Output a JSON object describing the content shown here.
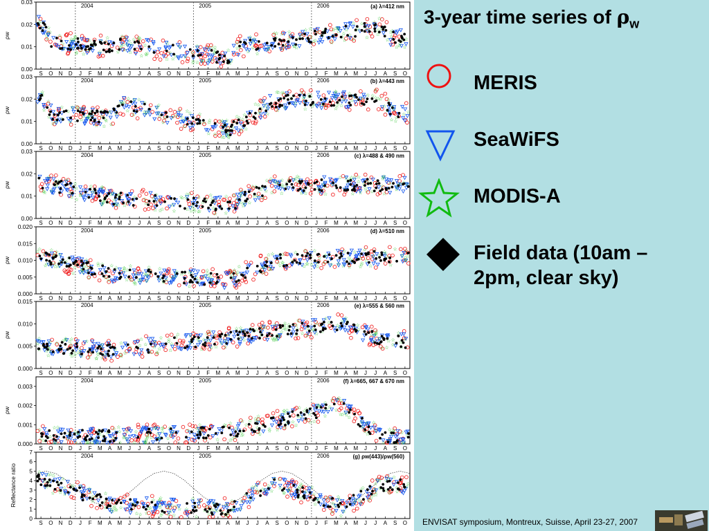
{
  "slide": {
    "title_main": "3-year time series of ",
    "title_rho": "ρ",
    "title_sub": "w",
    "footer": "ENVISAT symposium, Montreux, Suisse, April 23-27, 2007",
    "legend": [
      {
        "label": "MERIS",
        "symbol": "circle-icon",
        "color": "#ee1111"
      },
      {
        "label": "SeaWiFS",
        "symbol": "triangle-down-icon",
        "color": "#1155ee"
      },
      {
        "label": "MODIS-A",
        "symbol": "star-icon",
        "color": "#11bb11"
      },
      {
        "label": "Field data (10am –",
        "label2": "2pm, clear sky)",
        "symbol": "diamond-icon",
        "color": "#000000"
      }
    ]
  },
  "chart_data": [
    {
      "type": "scatter",
      "panel": "(a) λ=412 nm",
      "ylabel": "ρw",
      "yticks": [
        "0.00",
        "0.01",
        "0.02",
        "0.03"
      ],
      "ylim": [
        0,
        0.03
      ],
      "years": [
        "2004",
        "2005",
        "2006"
      ],
      "months": [
        "S",
        "O",
        "N",
        "D",
        "J",
        "F",
        "M",
        "A",
        "M",
        "J",
        "J",
        "A",
        "S",
        "O",
        "N",
        "D",
        "J",
        "F",
        "M",
        "A",
        "M",
        "J",
        "J",
        "A",
        "S",
        "O",
        "N",
        "D",
        "J",
        "F",
        "M",
        "A",
        "M",
        "J",
        "J",
        "A",
        "S",
        "O"
      ],
      "series": [
        {
          "name": "MERIS",
          "x": [
            1,
            5,
            8,
            12,
            16,
            21,
            25,
            30,
            34,
            38
          ],
          "values": [
            0.021,
            0.013,
            0.017,
            0.02,
            0.022,
            0.014,
            0.016,
            0.018,
            0.012,
            0.019
          ]
        },
        {
          "name": "Field data",
          "x": [
            0.5,
            1.5,
            7.5,
            8.5,
            19.5,
            20.5,
            35,
            36
          ],
          "values": [
            0.02,
            0.012,
            0.01,
            0.011,
            0.005,
            0.01,
            0.019,
            0.014
          ]
        }
      ]
    },
    {
      "type": "scatter",
      "panel": "(b) λ=443 nm",
      "ylabel": "ρw",
      "yticks": [
        "0.00",
        "0.01",
        "0.02",
        "0.03"
      ],
      "ylim": [
        0,
        0.03
      ],
      "years": [
        "2004",
        "2005",
        "2006"
      ],
      "months": [
        "S",
        "O",
        "N",
        "D",
        "J",
        "F",
        "M",
        "A",
        "M",
        "J",
        "J",
        "A",
        "S",
        "O",
        "N",
        "D",
        "J",
        "F",
        "M",
        "A",
        "M",
        "J",
        "J",
        "A",
        "S",
        "O",
        "N",
        "D",
        "J",
        "F",
        "M",
        "A",
        "M",
        "J",
        "J",
        "A",
        "S",
        "O"
      ],
      "series": [
        {
          "name": "Field data",
          "x": [
            0.5,
            1.5,
            7.5,
            8.5,
            19.5,
            24,
            35,
            36
          ],
          "values": [
            0.02,
            0.013,
            0.012,
            0.018,
            0.006,
            0.019,
            0.02,
            0.014
          ]
        }
      ]
    },
    {
      "type": "scatter",
      "panel": "(c) λ=488 & 490 nm",
      "ylabel": "ρw",
      "yticks": [
        "0.00",
        "0.01",
        "0.02",
        "0.03"
      ],
      "ylim": [
        0,
        0.03
      ],
      "years": [
        "2004",
        "2005",
        "2006"
      ],
      "months": [
        "S",
        "O",
        "N",
        "D",
        "J",
        "F",
        "M",
        "A",
        "M",
        "J",
        "J",
        "A",
        "S",
        "O",
        "N",
        "D",
        "J",
        "F",
        "M",
        "A",
        "M",
        "J",
        "J",
        "A",
        "S",
        "O",
        "N",
        "D",
        "J",
        "F",
        "M",
        "A",
        "M",
        "J",
        "J",
        "A",
        "S",
        "O"
      ],
      "series": [
        {
          "name": "Field data",
          "x": [
            0.5,
            7.5,
            19.5,
            24,
            35
          ],
          "values": [
            0.016,
            0.009,
            0.006,
            0.015,
            0.015
          ]
        }
      ]
    },
    {
      "type": "scatter",
      "panel": "(d) λ=510 nm",
      "ylabel": "ρw",
      "yticks": [
        "0.000",
        "0.005",
        "0.010",
        "0.015",
        "0.020"
      ],
      "ylim": [
        0,
        0.02
      ],
      "years": [
        "2004",
        "2005",
        "2006"
      ],
      "months": [
        "S",
        "O",
        "N",
        "D",
        "J",
        "F",
        "M",
        "A",
        "M",
        "J",
        "J",
        "A",
        "S",
        "O",
        "N",
        "D",
        "J",
        "F",
        "M",
        "A",
        "M",
        "J",
        "J",
        "A",
        "S",
        "O",
        "N",
        "D",
        "J",
        "F",
        "M",
        "A",
        "M",
        "J",
        "J",
        "A",
        "S",
        "O"
      ],
      "series": [
        {
          "name": "Field data",
          "x": [
            0.5,
            7.5,
            19.5,
            24,
            35
          ],
          "values": [
            0.011,
            0.006,
            0.004,
            0.01,
            0.011
          ]
        }
      ]
    },
    {
      "type": "scatter",
      "panel": "(e) λ=555 & 560 nm",
      "ylabel": "ρw",
      "yticks": [
        "0.000",
        "0.005",
        "0.010",
        "0.015"
      ],
      "ylim": [
        0,
        0.015
      ],
      "years": [
        "2004",
        "2005",
        "2006"
      ],
      "months": [
        "S",
        "O",
        "N",
        "D",
        "J",
        "F",
        "M",
        "A",
        "M",
        "J",
        "J",
        "A",
        "S",
        "O",
        "N",
        "D",
        "J",
        "F",
        "M",
        "A",
        "M",
        "J",
        "J",
        "A",
        "S",
        "O",
        "N",
        "D",
        "J",
        "F",
        "M",
        "A",
        "M",
        "J",
        "J",
        "A",
        "S",
        "O"
      ],
      "series": [
        {
          "name": "Field data",
          "x": [
            0.5,
            7.5,
            19.5,
            31,
            35
          ],
          "values": [
            0.005,
            0.004,
            0.007,
            0.01,
            0.006
          ]
        }
      ]
    },
    {
      "type": "scatter",
      "panel": "(f) λ=665, 667 & 670 nm",
      "ylabel": "ρw",
      "yticks": [
        "0.000",
        "0.001",
        "0.002",
        "0.003"
      ],
      "ylim": [
        0,
        0.0035
      ],
      "years": [
        "2004",
        "2005",
        "2006"
      ],
      "months": [
        "S",
        "O",
        "N",
        "D",
        "J",
        "F",
        "M",
        "A",
        "M",
        "J",
        "J",
        "A",
        "S",
        "O",
        "N",
        "D",
        "J",
        "F",
        "M",
        "A",
        "M",
        "J",
        "J",
        "A",
        "S",
        "O",
        "N",
        "D",
        "J",
        "F",
        "M",
        "A",
        "M",
        "J",
        "J",
        "A",
        "S",
        "O"
      ],
      "series": [
        {
          "name": "Field data",
          "x": [
            0.5,
            7.5,
            19.5,
            31,
            35
          ],
          "values": [
            0.0004,
            0.0004,
            0.0006,
            0.002,
            0.0003
          ]
        }
      ]
    },
    {
      "type": "scatter",
      "panel": "(g) ρw(443)/ρw(560)",
      "ylabel": "Reflectance ratio",
      "yticks": [
        "0",
        "1",
        "2",
        "3",
        "4",
        "5",
        "6",
        "7"
      ],
      "ylim": [
        0,
        7
      ],
      "years": [
        "2004",
        "2005",
        "2006"
      ],
      "months": [
        "S",
        "O",
        "N",
        "D",
        "J",
        "F",
        "M",
        "A",
        "M",
        "J",
        "J",
        "A",
        "S",
        "O",
        "N",
        "D",
        "J",
        "F",
        "M",
        "A",
        "M",
        "J",
        "J",
        "A",
        "S",
        "O",
        "N",
        "D",
        "J",
        "F",
        "M",
        "A",
        "M",
        "J",
        "J",
        "A",
        "S",
        "O"
      ],
      "series": [
        {
          "name": "Field data",
          "x": [
            0.5,
            7.5,
            19.5,
            24,
            31,
            35
          ],
          "values": [
            4,
            1.5,
            1,
            3.8,
            1.2,
            3.5
          ]
        }
      ]
    }
  ]
}
